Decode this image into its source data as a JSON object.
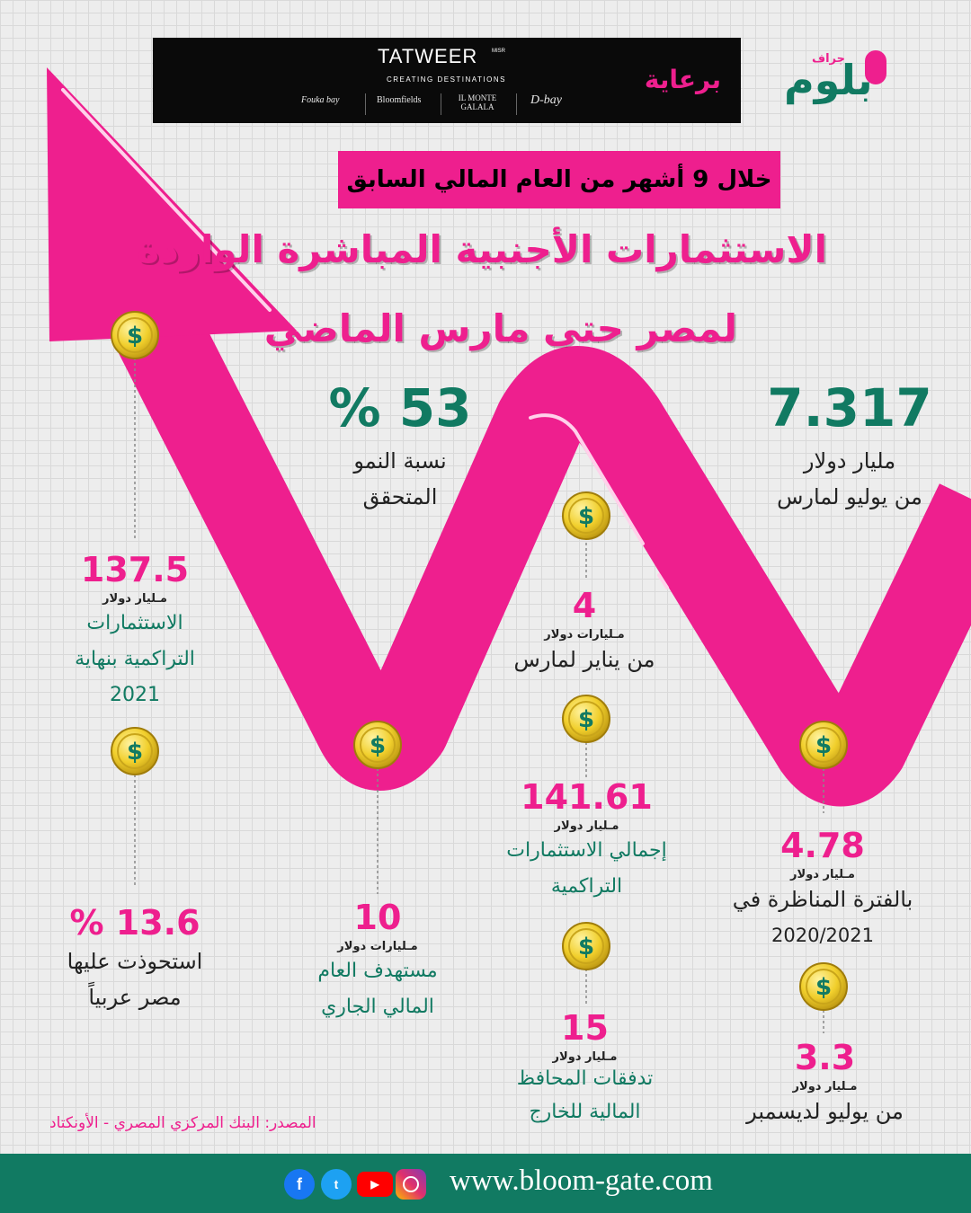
{
  "colors": {
    "accent": "#ee1f8e",
    "brand_green": "#117a62",
    "coin_gold": "#f1cf2c",
    "background": "#ededed"
  },
  "sponsor": {
    "label": "برعاية",
    "company": "TATWEER",
    "company_suffix": "MISR",
    "tagline": "CREATING DESTINATIONS",
    "projects": [
      "Fouka bay",
      "Bloomfields",
      "IL MONTE GALALA",
      "D-bay"
    ]
  },
  "logo": {
    "word": "بلوم",
    "sub": "جراف"
  },
  "header": {
    "subtitle": "خلال 9 أشهر من العام المالي السابق",
    "title_line1": "الاستثمارات الأجنبية المباشرة الواردة",
    "title_line2": "لمصر حتى مارس الماضي"
  },
  "stats": {
    "total": {
      "value": "7.317",
      "unit": "مليار دولار",
      "desc": "من يوليو لمارس"
    },
    "growth": {
      "value": "% 53",
      "desc1": "نسبة النمو",
      "desc2": "المتحقق"
    },
    "jan_mar": {
      "value": "4",
      "unit": "مـليارات دولار",
      "desc": "من يناير لمارس"
    },
    "cumulative_2021": {
      "value": "137.5",
      "unit": "مـليار دولار",
      "desc1": "الاستثمارات",
      "desc2": "التراكمية بنهاية",
      "desc3": "2021"
    },
    "total_cumulative": {
      "value": "141.61",
      "unit": "مـليار دولار",
      "desc1": "إجمالي الاستثمارات",
      "desc2": "التراكمية"
    },
    "comparable": {
      "value": "4.78",
      "unit": "مـليار دولار",
      "desc1": "بالفترة المناظرة في",
      "desc2": "2020/2021"
    },
    "arab_share": {
      "value": "% 13.6",
      "desc1": "استحوذت عليها",
      "desc2": "مصر عربياً"
    },
    "target": {
      "value": "10",
      "unit": "مـليارات دولار",
      "desc1": "مستهدف العام",
      "desc2": "المالي الجاري"
    },
    "portfolio": {
      "value": "15",
      "unit": "مـليار دولار",
      "desc1": "تدفقات المحافظ",
      "desc2": "المالية للخارج"
    },
    "jul_dec": {
      "value": "3.3",
      "unit": "مـليار دولار",
      "desc": "من يوليو لديسمبر"
    }
  },
  "source": "المصدر: البنك المركزي المصري - الأونكتاد",
  "footer": {
    "website": "www.bloom-gate.com",
    "social": [
      "facebook-icon",
      "twitter-icon",
      "youtube-icon",
      "instagram-icon"
    ]
  }
}
